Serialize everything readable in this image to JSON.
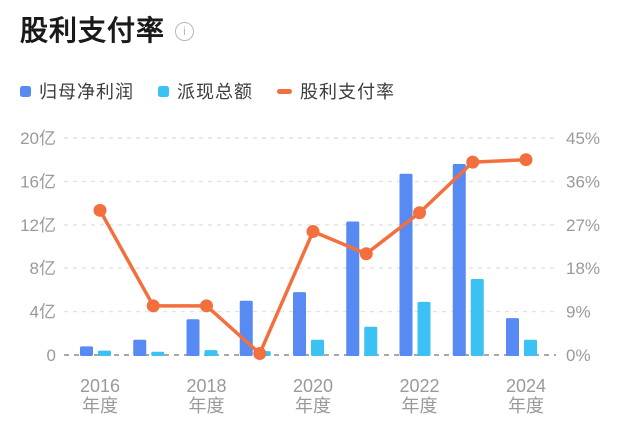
{
  "header": {
    "title": "股利支付率",
    "info_icon": "info"
  },
  "legend": [
    {
      "label": "归母净利润",
      "type": "bar",
      "color": "#578af3"
    },
    {
      "label": "派现总额",
      "type": "bar",
      "color": "#3bc1f3"
    },
    {
      "label": "股利支付率",
      "type": "line",
      "color": "#f3703e"
    }
  ],
  "chart_data": {
    "type": "bar+line combo",
    "categories": [
      "2016年度",
      "2017年度",
      "2018年度",
      "2019年度",
      "2020年度",
      "2021年度",
      "2022年度",
      "2023年度",
      "2024年度"
    ],
    "x_tick_labels_shown": [
      "2016年度",
      "2018年度",
      "2020年度",
      "2022年度",
      "2024年度"
    ],
    "series": [
      {
        "name": "归母净利润",
        "type": "bar",
        "axis": "left",
        "unit": "亿",
        "color": "#578af3",
        "values": [
          0.8,
          1.4,
          3.3,
          5.0,
          5.8,
          12.3,
          16.7,
          17.6,
          3.4
        ]
      },
      {
        "name": "派现总额",
        "type": "bar",
        "axis": "left",
        "unit": "亿",
        "color": "#3bc1f3",
        "values": [
          0.4,
          0.3,
          0.45,
          0.36,
          1.4,
          2.6,
          4.9,
          7.0,
          1.4
        ]
      },
      {
        "name": "股利支付率",
        "type": "line",
        "axis": "right",
        "unit": "%",
        "color": "#f3703e",
        "values": [
          30,
          10.2,
          10.2,
          0.3,
          25.6,
          21,
          29.5,
          40,
          40.5
        ]
      }
    ],
    "left_axis": {
      "min": 0,
      "max": 20,
      "ticks": [
        "0",
        "4亿",
        "8亿",
        "12亿",
        "16亿",
        "20亿"
      ]
    },
    "right_axis": {
      "min": 0,
      "max": 45,
      "ticks": [
        "0%",
        "9%",
        "18%",
        "27%",
        "36%",
        "45%"
      ]
    },
    "grid": "horizontal dashed lines, dashed dark baseline at zero",
    "legend_position": "top-left",
    "colors": {
      "grid_line": "#e2e2e2",
      "baseline": "#a8a8a8",
      "axis_label": "#9a9a9a",
      "title_text": "#1a1a1a",
      "legend_text": "#3c3c3c",
      "background": "#ffffff"
    }
  }
}
